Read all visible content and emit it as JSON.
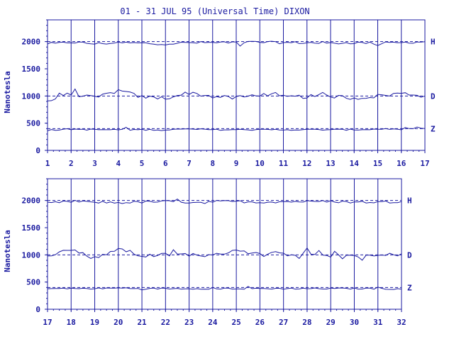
{
  "colors": {
    "ink": "#1a1aa0",
    "background": "#ffffff"
  },
  "chart_data": [
    {
      "type": "line",
      "title": "01 - 31 JUL 95 (Universal Time) DIXON",
      "ylabel": "Nanotesla",
      "xlabel": "",
      "xlim": [
        1,
        17
      ],
      "ylim": [
        0,
        2400
      ],
      "x_ticks": [
        "1",
        "2",
        "3",
        "4",
        "5",
        "6",
        "7",
        "8",
        "9",
        "10",
        "11",
        "12",
        "13",
        "14",
        "15",
        "16",
        "17"
      ],
      "y_ticks": [
        "0",
        "500",
        "1000",
        "1500",
        "2000"
      ],
      "grid": "vertical lines at each day",
      "series": [
        {
          "name": "H",
          "baseline": 2000,
          "x": [
            1,
            2,
            3,
            4,
            5,
            6,
            7,
            8,
            9,
            10,
            11,
            12,
            13,
            14,
            15,
            16,
            17
          ],
          "values": [
            1950,
            1990,
            1960,
            1980,
            1970,
            1960,
            1980,
            1980,
            1990,
            1990,
            1980,
            1980,
            1970,
            1980,
            1970,
            1980,
            2000
          ]
        },
        {
          "name": "D",
          "baseline": 1000,
          "x": [
            1,
            2,
            3,
            4,
            5,
            6,
            7,
            8,
            9,
            10,
            11,
            12,
            13,
            14,
            15,
            16,
            17
          ],
          "values": [
            900,
            1050,
            960,
            1100,
            980,
            960,
            1060,
            990,
            960,
            1030,
            980,
            990,
            1000,
            960,
            1000,
            1050,
            1000
          ]
        },
        {
          "name": "Z",
          "baseline": 400,
          "x": [
            1,
            2,
            3,
            4,
            5,
            6,
            7,
            8,
            9,
            10,
            11,
            12,
            13,
            14,
            15,
            16,
            17
          ],
          "values": [
            370,
            390,
            380,
            380,
            380,
            380,
            390,
            380,
            380,
            380,
            380,
            380,
            380,
            380,
            390,
            390,
            400
          ]
        }
      ]
    },
    {
      "type": "line",
      "title": "",
      "ylabel": "Nanotesla",
      "xlabel": "",
      "xlim": [
        17,
        32
      ],
      "ylim": [
        0,
        2400
      ],
      "x_ticks": [
        "17",
        "18",
        "19",
        "20",
        "21",
        "22",
        "23",
        "24",
        "25",
        "26",
        "27",
        "28",
        "29",
        "30",
        "31",
        "32"
      ],
      "y_ticks": [
        "0",
        "500",
        "1000",
        "1500",
        "2000"
      ],
      "grid": "vertical lines at each day",
      "series": [
        {
          "name": "H",
          "baseline": 2000,
          "x": [
            17,
            18,
            19,
            20,
            21,
            22,
            23,
            24,
            25,
            26,
            27,
            28,
            29,
            30,
            31,
            32
          ],
          "values": [
            1950,
            1980,
            1970,
            1960,
            1970,
            1980,
            1970,
            1980,
            1980,
            1970,
            1980,
            1980,
            1980,
            1970,
            1970,
            1980
          ]
        },
        {
          "name": "D",
          "baseline": 1000,
          "x": [
            17,
            18,
            19,
            20,
            21,
            22,
            23,
            24,
            25,
            26,
            27,
            28,
            29,
            30,
            31,
            32
          ],
          "values": [
            1000,
            1100,
            940,
            1120,
            980,
            1000,
            1010,
            980,
            1100,
            1000,
            1010,
            1030,
            990,
            990,
            980,
            1020
          ]
        },
        {
          "name": "Z",
          "baseline": 400,
          "x": [
            17,
            18,
            19,
            20,
            21,
            22,
            23,
            24,
            25,
            26,
            27,
            28,
            29,
            30,
            31,
            32
          ],
          "values": [
            380,
            380,
            380,
            390,
            380,
            380,
            380,
            380,
            380,
            380,
            380,
            380,
            380,
            380,
            380,
            370
          ]
        }
      ]
    }
  ]
}
